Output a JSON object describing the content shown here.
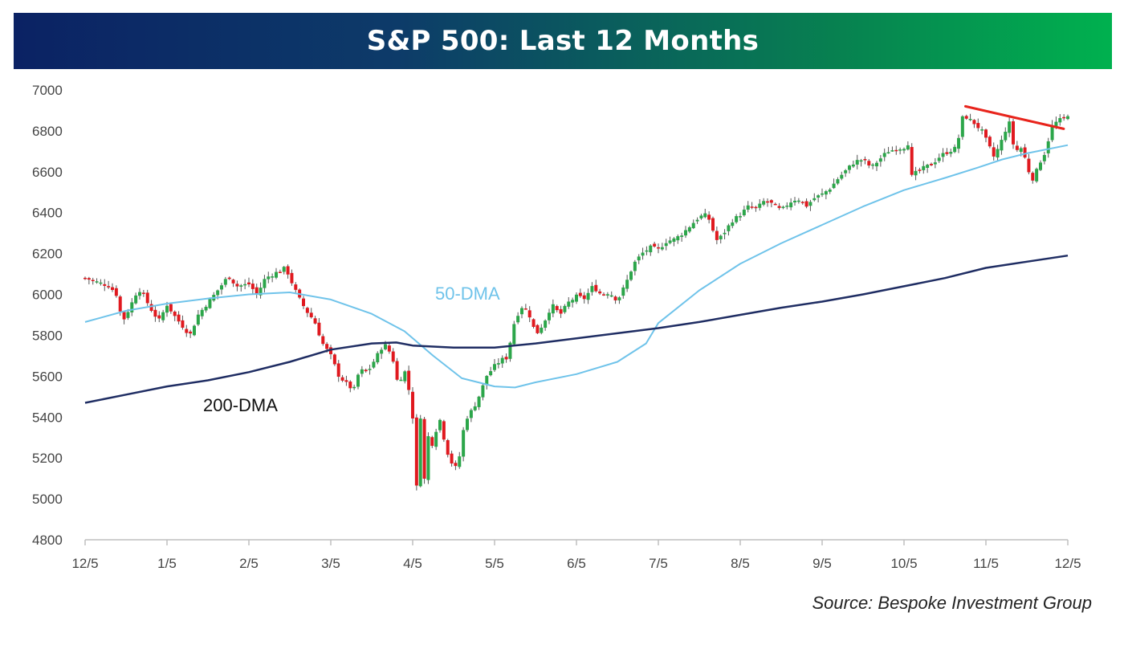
{
  "chart_data": {
    "type": "candlestick",
    "title": "S&P 500: Last 12 Months",
    "source": "Source: Bespoke Investment Group",
    "ylim": [
      4800,
      7000
    ],
    "yticks": [
      4800,
      5000,
      5200,
      5400,
      5600,
      5800,
      6000,
      6200,
      6400,
      6600,
      6800,
      7000
    ],
    "xlim": [
      0,
      12
    ],
    "xticks": [
      {
        "label": "12/5",
        "pos": 0
      },
      {
        "label": "1/5",
        "pos": 1
      },
      {
        "label": "2/5",
        "pos": 2
      },
      {
        "label": "3/5",
        "pos": 3
      },
      {
        "label": "4/5",
        "pos": 4
      },
      {
        "label": "5/5",
        "pos": 5
      },
      {
        "label": "6/5",
        "pos": 6
      },
      {
        "label": "7/5",
        "pos": 7
      },
      {
        "label": "8/5",
        "pos": 8
      },
      {
        "label": "9/5",
        "pos": 9
      },
      {
        "label": "10/5",
        "pos": 10
      },
      {
        "label": "11/5",
        "pos": 11
      },
      {
        "label": "12/5",
        "pos": 12
      }
    ],
    "colors": {
      "up": "#2ca64a",
      "down": "#e0191f",
      "wick": "#555555",
      "dma50": "#6fc3ea",
      "dma200": "#1f2d63",
      "trendline": "#e8241c",
      "axis": "#bfbfbf"
    },
    "close_path": [
      [
        0.0,
        6080
      ],
      [
        0.15,
        6060
      ],
      [
        0.3,
        6040
      ],
      [
        0.4,
        5990
      ],
      [
        0.45,
        5860
      ],
      [
        0.55,
        5940
      ],
      [
        0.65,
        6030
      ],
      [
        0.72,
        5990
      ],
      [
        0.8,
        5930
      ],
      [
        0.9,
        5870
      ],
      [
        1.0,
        5950
      ],
      [
        1.1,
        5890
      ],
      [
        1.2,
        5840
      ],
      [
        1.28,
        5800
      ],
      [
        1.38,
        5900
      ],
      [
        1.5,
        5960
      ],
      [
        1.6,
        6010
      ],
      [
        1.75,
        6090
      ],
      [
        1.85,
        6040
      ],
      [
        2.0,
        6050
      ],
      [
        2.1,
        6000
      ],
      [
        2.2,
        6080
      ],
      [
        2.35,
        6110
      ],
      [
        2.45,
        6130
      ],
      [
        2.5,
        6080
      ],
      [
        2.6,
        5990
      ],
      [
        2.7,
        5920
      ],
      [
        2.8,
        5870
      ],
      [
        2.9,
        5760
      ],
      [
        3.0,
        5700
      ],
      [
        3.1,
        5600
      ],
      [
        3.2,
        5560
      ],
      [
        3.28,
        5530
      ],
      [
        3.35,
        5630
      ],
      [
        3.45,
        5620
      ],
      [
        3.55,
        5690
      ],
      [
        3.65,
        5760
      ],
      [
        3.75,
        5700
      ],
      [
        3.82,
        5560
      ],
      [
        3.9,
        5630
      ],
      [
        3.96,
        5520
      ],
      [
        4.0,
        5400
      ],
      [
        4.03,
        5070
      ],
      [
        4.06,
        5050
      ],
      [
        4.1,
        5450
      ],
      [
        4.13,
        4990
      ],
      [
        4.17,
        5320
      ],
      [
        4.25,
        5260
      ],
      [
        4.32,
        5410
      ],
      [
        4.38,
        5300
      ],
      [
        4.45,
        5190
      ],
      [
        4.55,
        5140
      ],
      [
        4.6,
        5300
      ],
      [
        4.65,
        5390
      ],
      [
        4.75,
        5450
      ],
      [
        4.83,
        5520
      ],
      [
        4.9,
        5600
      ],
      [
        5.0,
        5650
      ],
      [
        5.08,
        5680
      ],
      [
        5.15,
        5690
      ],
      [
        5.25,
        5880
      ],
      [
        5.35,
        5950
      ],
      [
        5.45,
        5880
      ],
      [
        5.5,
        5800
      ],
      [
        5.6,
        5860
      ],
      [
        5.7,
        5950
      ],
      [
        5.8,
        5900
      ],
      [
        5.9,
        5960
      ],
      [
        6.0,
        5990
      ],
      [
        6.1,
        5980
      ],
      [
        6.2,
        6040
      ],
      [
        6.3,
        6000
      ],
      [
        6.4,
        6010
      ],
      [
        6.5,
        5970
      ],
      [
        6.6,
        6050
      ],
      [
        6.7,
        6150
      ],
      [
        6.8,
        6200
      ],
      [
        6.9,
        6230
      ],
      [
        7.0,
        6220
      ],
      [
        7.1,
        6260
      ],
      [
        7.2,
        6270
      ],
      [
        7.3,
        6300
      ],
      [
        7.4,
        6340
      ],
      [
        7.5,
        6380
      ],
      [
        7.6,
        6390
      ],
      [
        7.65,
        6330
      ],
      [
        7.72,
        6260
      ],
      [
        7.8,
        6300
      ],
      [
        7.9,
        6360
      ],
      [
        8.0,
        6390
      ],
      [
        8.1,
        6430
      ],
      [
        8.2,
        6420
      ],
      [
        8.3,
        6460
      ],
      [
        8.4,
        6440
      ],
      [
        8.5,
        6410
      ],
      [
        8.6,
        6450
      ],
      [
        8.7,
        6470
      ],
      [
        8.8,
        6430
      ],
      [
        8.9,
        6470
      ],
      [
        9.0,
        6490
      ],
      [
        9.1,
        6520
      ],
      [
        9.2,
        6570
      ],
      [
        9.3,
        6610
      ],
      [
        9.4,
        6650
      ],
      [
        9.5,
        6660
      ],
      [
        9.6,
        6620
      ],
      [
        9.7,
        6660
      ],
      [
        9.8,
        6700
      ],
      [
        9.9,
        6710
      ],
      [
        10.0,
        6720
      ],
      [
        10.05,
        6740
      ],
      [
        10.1,
        6560
      ],
      [
        10.15,
        6600
      ],
      [
        10.25,
        6620
      ],
      [
        10.35,
        6640
      ],
      [
        10.45,
        6680
      ],
      [
        10.55,
        6700
      ],
      [
        10.65,
        6720
      ],
      [
        10.7,
        6860
      ],
      [
        10.75,
        6870
      ],
      [
        10.85,
        6840
      ],
      [
        10.95,
        6800
      ],
      [
        11.02,
        6740
      ],
      [
        11.1,
        6670
      ],
      [
        11.2,
        6760
      ],
      [
        11.28,
        6850
      ],
      [
        11.35,
        6700
      ],
      [
        11.45,
        6720
      ],
      [
        11.5,
        6620
      ],
      [
        11.58,
        6560
      ],
      [
        11.65,
        6640
      ],
      [
        11.73,
        6700
      ],
      [
        11.8,
        6820
      ],
      [
        11.88,
        6850
      ],
      [
        11.95,
        6860
      ],
      [
        12.0,
        6880
      ]
    ],
    "series": [
      {
        "name": "50-DMA",
        "label": "50-DMA",
        "points": [
          [
            0.0,
            5865
          ],
          [
            0.5,
            5920
          ],
          [
            1.0,
            5955
          ],
          [
            1.5,
            5980
          ],
          [
            2.0,
            6000
          ],
          [
            2.5,
            6010
          ],
          [
            3.0,
            5975
          ],
          [
            3.5,
            5905
          ],
          [
            3.9,
            5820
          ],
          [
            4.25,
            5700
          ],
          [
            4.6,
            5590
          ],
          [
            5.0,
            5550
          ],
          [
            5.25,
            5545
          ],
          [
            5.5,
            5570
          ],
          [
            6.0,
            5610
          ],
          [
            6.5,
            5670
          ],
          [
            6.85,
            5760
          ],
          [
            7.0,
            5860
          ],
          [
            7.5,
            6020
          ],
          [
            8.0,
            6150
          ],
          [
            8.5,
            6250
          ],
          [
            9.0,
            6340
          ],
          [
            9.5,
            6430
          ],
          [
            10.0,
            6510
          ],
          [
            10.5,
            6570
          ],
          [
            10.9,
            6620
          ],
          [
            11.2,
            6660
          ],
          [
            11.5,
            6690
          ],
          [
            12.0,
            6730
          ]
        ]
      },
      {
        "name": "200-DMA",
        "label": "200-DMA",
        "points": [
          [
            0.0,
            5470
          ],
          [
            0.5,
            5510
          ],
          [
            1.0,
            5550
          ],
          [
            1.5,
            5580
          ],
          [
            2.0,
            5620
          ],
          [
            2.5,
            5670
          ],
          [
            3.0,
            5730
          ],
          [
            3.5,
            5760
          ],
          [
            3.8,
            5765
          ],
          [
            4.0,
            5750
          ],
          [
            4.5,
            5740
          ],
          [
            5.0,
            5740
          ],
          [
            5.5,
            5760
          ],
          [
            6.0,
            5785
          ],
          [
            6.5,
            5810
          ],
          [
            7.0,
            5835
          ],
          [
            7.5,
            5865
          ],
          [
            8.0,
            5900
          ],
          [
            8.5,
            5935
          ],
          [
            9.0,
            5965
          ],
          [
            9.5,
            6000
          ],
          [
            10.0,
            6040
          ],
          [
            10.5,
            6080
          ],
          [
            11.0,
            6130
          ],
          [
            11.5,
            6160
          ],
          [
            12.0,
            6190
          ]
        ]
      }
    ],
    "trendline": {
      "name": "downtrend-resistance",
      "points": [
        [
          10.75,
          6920
        ],
        [
          11.95,
          6810
        ]
      ]
    }
  }
}
